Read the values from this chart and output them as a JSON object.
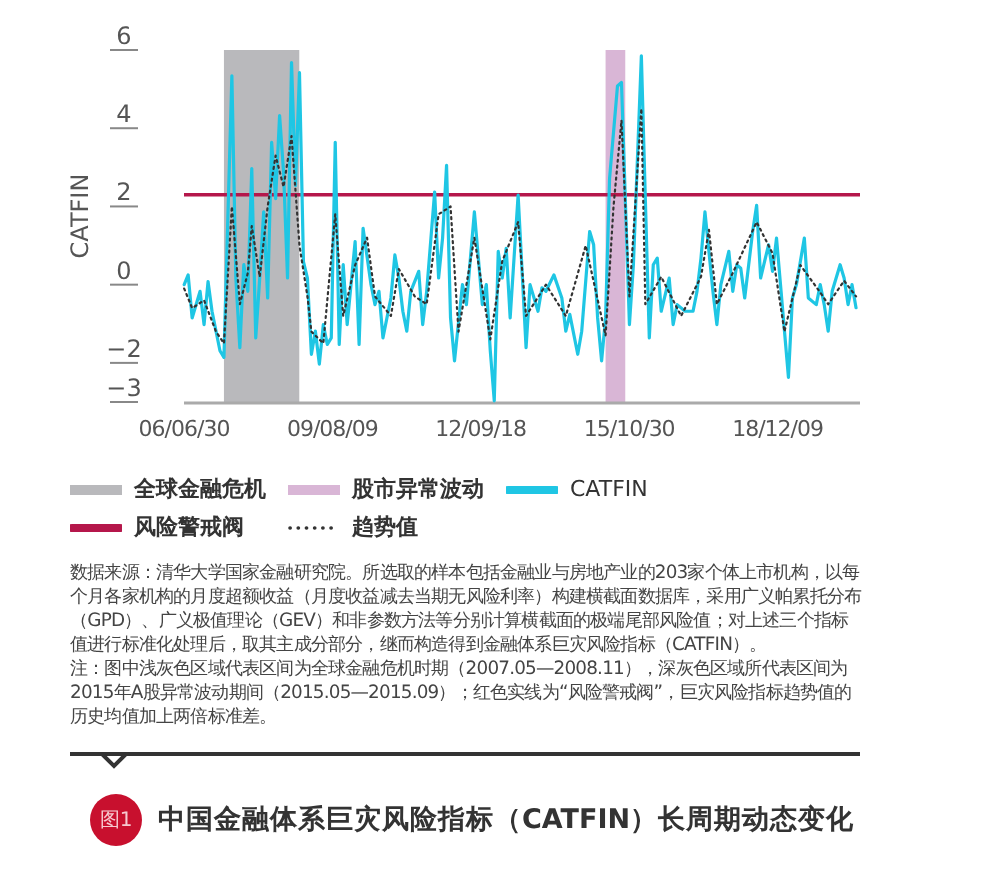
{
  "chart_data": {
    "type": "line",
    "title": "中国金融体系巨灾风险指标（CATFIN）长周期动态变化",
    "ylabel": "CATFIN",
    "xlim": [
      "2006-06-30",
      "2020-09"
    ],
    "ylim": [
      -3,
      6
    ],
    "yticks": [
      6,
      4,
      2,
      0,
      -2,
      -3
    ],
    "xticks": [
      {
        "value": "2006-06-30",
        "label": "06/06/30"
      },
      {
        "value": "2009-08-09",
        "label": "09/08/09"
      },
      {
        "value": "2012-09-18",
        "label": "12/09/18"
      },
      {
        "value": "2015-10-30",
        "label": "15/10/30"
      },
      {
        "value": "2018-12-09",
        "label": "18/12/09"
      }
    ],
    "legend": "bottom",
    "bands": [
      {
        "axis": "x",
        "from": "2007-05-01",
        "to": "2008-11-30",
        "label": "全球金融危机",
        "color": "#b9b9bc"
      },
      {
        "axis": "x",
        "from": "2015-05-01",
        "to": "2015-09-30",
        "label": "股市异常波动",
        "color": "#d9b6d6"
      }
    ],
    "ref_lines": [
      {
        "axis": "y",
        "value": 2.3,
        "label": "风险警戒阀",
        "color": "#b5174b"
      }
    ],
    "series": [
      {
        "name": "CATFIN",
        "color": "#1fc6e4",
        "line_style": "solid",
        "x": [
          "2006-07",
          "2006-08",
          "2006-09",
          "2006-11",
          "2006-12",
          "2007-01",
          "2007-02",
          "2007-04",
          "2007-05",
          "2007-07",
          "2007-08",
          "2007-09",
          "2007-10",
          "2007-11",
          "2007-12",
          "2008-01",
          "2008-02",
          "2008-03",
          "2008-04",
          "2008-05",
          "2008-06",
          "2008-07",
          "2008-08",
          "2008-09",
          "2008-10",
          "2008-11",
          "2008-12",
          "2009-01",
          "2009-02",
          "2009-03",
          "2009-04",
          "2009-05",
          "2009-06",
          "2009-07",
          "2009-08",
          "2009-09",
          "2009-10",
          "2009-11",
          "2009-12",
          "2010-02",
          "2010-03",
          "2010-04",
          "2010-06",
          "2010-07",
          "2010-08",
          "2010-09",
          "2010-11",
          "2010-12",
          "2011-01",
          "2011-02",
          "2011-03",
          "2011-04",
          "2011-06",
          "2011-07",
          "2011-08",
          "2011-10",
          "2011-11",
          "2011-12",
          "2012-01",
          "2012-02",
          "2012-03",
          "2012-05",
          "2012-06",
          "2012-08",
          "2012-10",
          "2012-11",
          "2012-12",
          "2013-01",
          "2013-02",
          "2013-03",
          "2013-04",
          "2013-05",
          "2013-07",
          "2013-09",
          "2013-10",
          "2013-12",
          "2014-01",
          "2014-02",
          "2014-04",
          "2014-06",
          "2014-07",
          "2014-08",
          "2014-10",
          "2014-11",
          "2015-01",
          "2015-02",
          "2015-03",
          "2015-04",
          "2015-05",
          "2015-06",
          "2015-08",
          "2015-09",
          "2015-11",
          "2015-12",
          "2016-02",
          "2016-03",
          "2016-04",
          "2016-05",
          "2016-06",
          "2016-07",
          "2016-09",
          "2016-10",
          "2016-11",
          "2017-01",
          "2017-03",
          "2017-04",
          "2017-05",
          "2017-06",
          "2017-08",
          "2017-09",
          "2017-10",
          "2017-12",
          "2018-01",
          "2018-02",
          "2018-03",
          "2018-04",
          "2018-06",
          "2018-07",
          "2018-08",
          "2018-10",
          "2018-11",
          "2018-12",
          "2019-01",
          "2019-03",
          "2019-04",
          "2019-05",
          "2019-07",
          "2019-08",
          "2019-10",
          "2019-11",
          "2019-12",
          "2020-01",
          "2020-02",
          "2020-04",
          "2020-05",
          "2020-06",
          "2020-07",
          "2020-08"
        ],
        "values": [
          0,
          0.25,
          -0.85,
          -0.17,
          -1.02,
          0.08,
          -0.68,
          -1.69,
          -1.86,
          5.34,
          0.17,
          -1.61,
          0.51,
          -0.17,
          2.97,
          -1.36,
          0.17,
          1.86,
          -0.34,
          3.64,
          2.2,
          4.32,
          2.88,
          0.17,
          5.68,
          2.54,
          5.42,
          0.59,
          0.17,
          -1.78,
          -1.19,
          -2.03,
          -1.02,
          -1.53,
          -1.36,
          3.64,
          -1.53,
          0.51,
          -1.02,
          1.1,
          -1.53,
          1.44,
          0,
          -0.51,
          -0.17,
          -1.36,
          -0.34,
          0.76,
          0.17,
          -0.68,
          -1.19,
          -0.17,
          0.34,
          -1.02,
          -0.17,
          2.37,
          0.17,
          1.19,
          3.05,
          -0.85,
          -1.95,
          0,
          -0.51,
          1.86,
          -0.51,
          0,
          -1.69,
          -2.97,
          0.85,
          0.17,
          0.93,
          -0.85,
          2.29,
          -1.61,
          0,
          -0.68,
          -0.08,
          -0.17,
          0.25,
          -0.34,
          -1.19,
          -0.76,
          -1.78,
          -1.19,
          1.36,
          1.02,
          -0.85,
          -1.95,
          -0.85,
          2.71,
          5.08,
          5.17,
          -1.02,
          0.51,
          5.85,
          2.2,
          -1.36,
          0.51,
          0.68,
          -0.68,
          0.17,
          -1.02,
          -0.51,
          -0.68,
          -0.68,
          -0.17,
          0.68,
          1.86,
          -0.17,
          -1.02,
          0,
          0.85,
          -0.17,
          0.51,
          0.42,
          -0.34,
          1.36,
          2.03,
          0.17,
          1.02,
          0.34,
          1.19,
          0,
          -2.37,
          -0.34,
          0,
          1.19,
          -0.34,
          -0.51,
          0,
          -0.51,
          -1.19,
          -0.17,
          0.51,
          0.17,
          -0.51,
          0,
          -0.59
        ]
      },
      {
        "name": "趋势值",
        "color": "#333333",
        "line_style": "dotted",
        "x": [
          "2006-07",
          "2006-09",
          "2006-12",
          "2007-03",
          "2007-05",
          "2007-07",
          "2007-09",
          "2007-11",
          "2007-12",
          "2008-02",
          "2008-04",
          "2008-06",
          "2008-08",
          "2008-10",
          "2008-12",
          "2009-02",
          "2009-03",
          "2009-06",
          "2009-09",
          "2009-11",
          "2010-02",
          "2010-05",
          "2010-07",
          "2010-11",
          "2011-01",
          "2011-05",
          "2011-08",
          "2011-11",
          "2012-02",
          "2012-04",
          "2012-08",
          "2012-12",
          "2013-03",
          "2013-07",
          "2013-09",
          "2014-02",
          "2014-07",
          "2014-12",
          "2015-05",
          "2015-07",
          "2015-09",
          "2015-11",
          "2016-02",
          "2016-03",
          "2016-07",
          "2016-12",
          "2017-05",
          "2017-07",
          "2017-09",
          "2018-01",
          "2018-07",
          "2018-11",
          "2019-02",
          "2019-06",
          "2019-11",
          "2020-01",
          "2020-05",
          "2020-08"
        ],
        "values": [
          -0.1,
          -0.6,
          -0.4,
          -1.2,
          -1.5,
          2.0,
          -0.5,
          0.3,
          1.5,
          0.2,
          2.0,
          3.3,
          2.5,
          3.8,
          1.0,
          -0.3,
          -1.2,
          -1.5,
          1.8,
          -0.8,
          0.5,
          1.2,
          -0.3,
          -0.8,
          0.4,
          -0.3,
          -0.5,
          1.8,
          2.0,
          -1.2,
          1.2,
          -1.4,
          0.6,
          1.6,
          -0.8,
          0.0,
          -0.8,
          1.0,
          -1.3,
          2.0,
          4.2,
          -0.3,
          4.5,
          -0.5,
          0.2,
          -0.8,
          0.2,
          1.4,
          -0.5,
          0.3,
          1.6,
          0.8,
          -1.2,
          0.5,
          -0.2,
          -0.5,
          0.1,
          -0.3
        ]
      }
    ],
    "annotations": [
      "数据来源：清华大学国家金融研究院。所选取的样本包括金融业与房地产业的203家个体上市机构，以每个月各家机构的月度超额收益（月度收益减去当期无风险利率）构建横截面数据库，采用广义帕累托分布（GPD）、广义极值理论（GEV）和非参数方法等分别计算横截面的极端尾部风险值；对上述三个指标值进行标准化处理后，取其主成分部分，继而构造得到金融体系巨灾风险指标（CATFIN）。",
      "注：图中浅灰色区域代表区间为全球金融危机时期（2007.05—2008.11），深灰色区域所代表区间为2015年A股异常波动期间（2015.05—2015.09）；红色实线为“风险警戒阀”，巨灾风险指标趋势值的历史均值加上两倍标准差。",
      "图1"
    ]
  }
}
